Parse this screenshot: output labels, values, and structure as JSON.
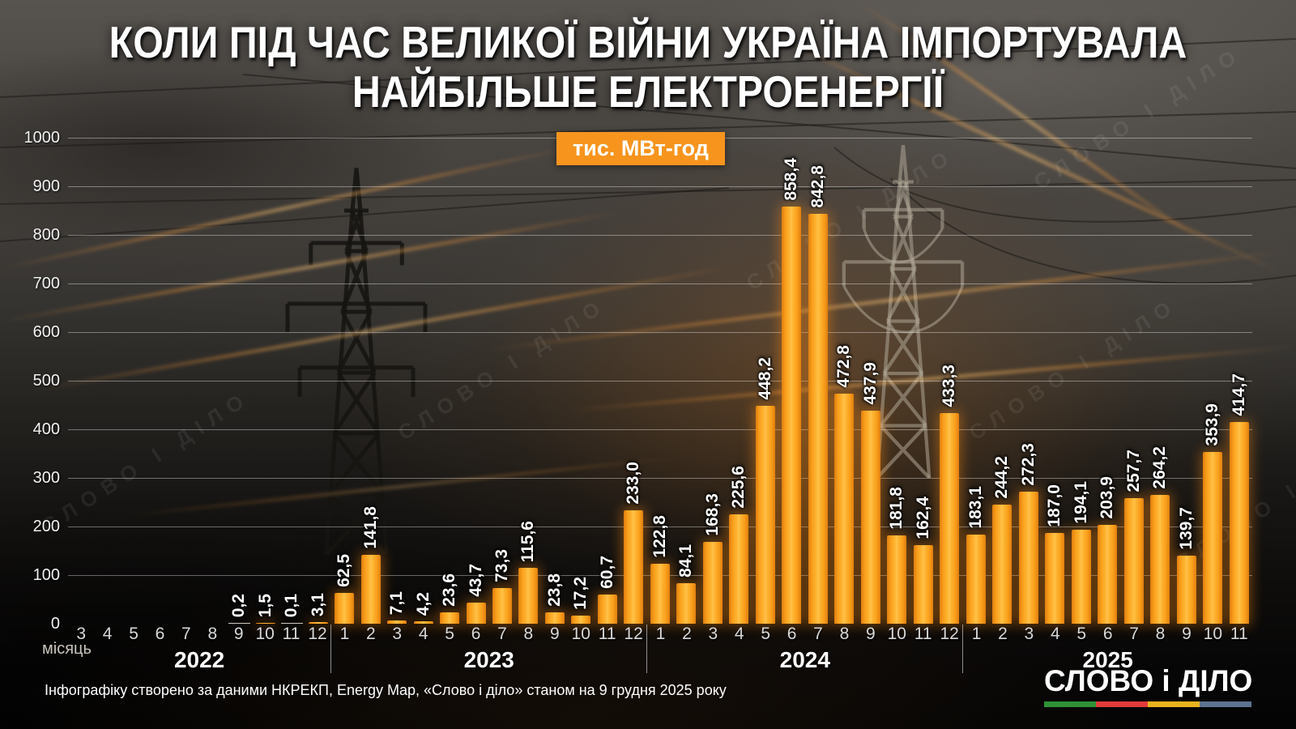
{
  "title": {
    "line1": "КОЛИ ПІД ЧАС ВЕЛИКОЇ ВІЙНИ УКРАЇНА ІМПОРТУВАЛА",
    "line2": "НАЙБІЛЬШЕ ЕЛЕКТРОЕНЕРГІЇ"
  },
  "unit_badge": "тис. МВт-год",
  "axis": {
    "x_label": "місяць"
  },
  "footer": "Інфографіку створено за даними НКРЕКП, Energy Map, «Слово і діло» станом на 9 грудня 2025 року",
  "watermark": "СЛОВО І ДІЛО",
  "logo": {
    "text": "СЛОВО і ДІЛО",
    "colors": [
      "#2e9235",
      "#e23b3b",
      "#eab41f",
      "#5d7390"
    ]
  },
  "colors": {
    "bar": "#ffb937",
    "bar_edge": "#dd7d10",
    "badge": "#f7941e",
    "gridline": "rgba(255,255,255,0.38)"
  },
  "chart_data": {
    "type": "bar",
    "title": "КОЛИ ПІД ЧАС ВЕЛИКОЇ ВІЙНИ УКРАЇНА ІМПОРТУВАЛА НАЙБІЛЬШЕ ЕЛЕКТРОЕНЕРГІЇ",
    "unit": "тис. МВт-год",
    "xlabel": "місяць",
    "ylim": [
      0,
      1000
    ],
    "ytick_step": 100,
    "grid": true,
    "groups": [
      {
        "year": "2022",
        "months": [
          3,
          4,
          5,
          6,
          7,
          8,
          9,
          10,
          11,
          12
        ],
        "values": [
          null,
          null,
          null,
          null,
          null,
          null,
          0.2,
          1.5,
          0.1,
          3.1
        ],
        "labels": [
          "",
          "",
          "",
          "",
          "",
          "",
          "0,2",
          "1,5",
          "0,1",
          "3,1"
        ]
      },
      {
        "year": "2023",
        "months": [
          1,
          2,
          3,
          4,
          5,
          6,
          7,
          8,
          9,
          10,
          11,
          12
        ],
        "values": [
          62.5,
          141.8,
          7.1,
          4.2,
          23.6,
          43.7,
          73.3,
          115.6,
          23.8,
          17.2,
          60.7,
          233.0
        ],
        "labels": [
          "62,5",
          "141,8",
          "7,1",
          "4,2",
          "23,6",
          "43,7",
          "73,3",
          "115,6",
          "23,8",
          "17,2",
          "60,7",
          "233,0"
        ]
      },
      {
        "year": "2024",
        "months": [
          1,
          2,
          3,
          4,
          5,
          6,
          7,
          8,
          9,
          10,
          11,
          12
        ],
        "values": [
          122.8,
          84.1,
          168.3,
          225.6,
          448.2,
          858.4,
          842.8,
          472.8,
          437.9,
          181.8,
          162.4,
          433.3
        ],
        "labels": [
          "122,8",
          "84,1",
          "168,3",
          "225,6",
          "448,2",
          "858,4",
          "842,8",
          "472,8",
          "437,9",
          "181,8",
          "162,4",
          "433,3"
        ]
      },
      {
        "year": "2025",
        "months": [
          1,
          2,
          3,
          4,
          5,
          6,
          7,
          8,
          9,
          10,
          11
        ],
        "values": [
          183.1,
          244.2,
          272.3,
          187.0,
          194.1,
          203.9,
          257.7,
          264.2,
          139.7,
          353.9,
          414.7
        ],
        "labels": [
          "183,1",
          "244,2",
          "272,3",
          "187,0",
          "194,1",
          "203,9",
          "257,7",
          "264,2",
          "139,7",
          "353,9",
          "414,7"
        ]
      }
    ]
  }
}
